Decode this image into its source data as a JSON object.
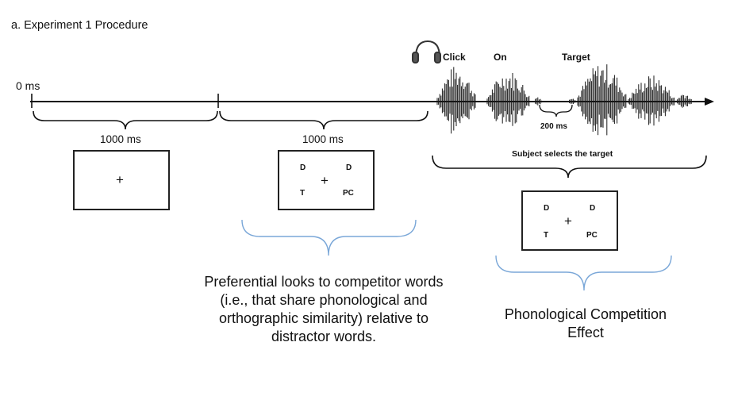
{
  "title": "a. Experiment 1 Procedure",
  "timeline": {
    "start_label": "0 ms",
    "segment1_duration": "1000 ms",
    "segment2_duration": "1000 ms"
  },
  "audio": {
    "icon": "headphones-icon",
    "words": [
      "Click",
      "On",
      "Target"
    ],
    "gap_label": "200 ms",
    "response_label": "Subject selects the target"
  },
  "screens": {
    "fixation": {
      "symbol": "+"
    },
    "preview": {
      "top_left": "D",
      "top_right": "D",
      "bottom_left": "T",
      "bottom_right": "PC",
      "center": "+"
    },
    "response": {
      "top_left": "D",
      "top_right": "D",
      "bottom_left": "T",
      "bottom_right": "PC",
      "center": "+"
    }
  },
  "annotations": {
    "preview_note": "Preferential looks to competitor words (i.e., that share phonological and orthographic similarity) relative to distractor words.",
    "response_note": "Phonological Competition Effect"
  },
  "colors": {
    "blue_brace": "#7aa7d8",
    "line": "#111111"
  }
}
